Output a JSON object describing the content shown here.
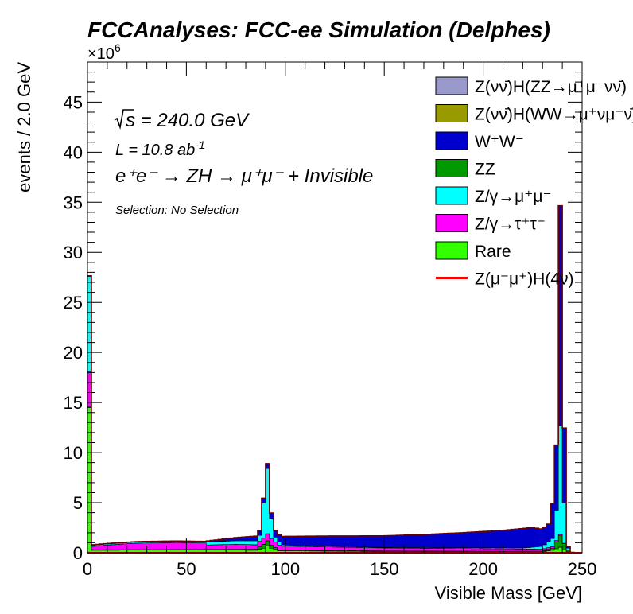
{
  "header": {
    "title": "FCCAnalyses: FCC-ee Simulation (Delphes)"
  },
  "annotations": {
    "sqrt_s": "s = 240.0 GeV",
    "lumi_prefix": "L = 10.8 ab",
    "lumi_exp": "-1",
    "process": "e⁺e⁻ → ZH → μ⁺μ⁻ + Invisible",
    "selection": "Selection: No Selection",
    "exponent_base": "×10",
    "exponent_power": "6"
  },
  "colors": {
    "ZZ_mumununu": "#9999cc",
    "WW_mumununu": "#999900",
    "WW": "#0000cc",
    "ZZ": "#009900",
    "Zmumu": "#00ffff",
    "Ztautau": "#ff00ff",
    "Rare": "#33ff00",
    "signal": "#ff0000"
  },
  "chart_data": {
    "type": "bar",
    "stacked": true,
    "xlabel": "Visible Mass [GeV]",
    "ylabel": "events / 2.0 GeV",
    "xlim": [
      0,
      250
    ],
    "ylim": [
      0,
      49
    ],
    "y_unit_multiplier": "1e6",
    "bin_width": 2.0,
    "xticks": [
      "0",
      "50",
      "100",
      "150",
      "200",
      "250"
    ],
    "yticks": [
      "0",
      "5",
      "10",
      "15",
      "20",
      "25",
      "30",
      "35",
      "40",
      "45"
    ],
    "legend_position": "top-right",
    "legend": [
      {
        "label": "Z(νν̄)H(ZZ→μ⁺μ⁻νν̄)",
        "color_key": "ZZ_mumununu",
        "style": "fill"
      },
      {
        "label": "Z(νν̄)H(WW→μ⁺νμ⁻ν̄)",
        "color_key": "WW_mumununu",
        "style": "fill"
      },
      {
        "label": "W⁺W⁻",
        "color_key": "WW",
        "style": "fill"
      },
      {
        "label": "ZZ",
        "color_key": "ZZ",
        "style": "fill"
      },
      {
        "label": "Z/γ→μ⁺μ⁻",
        "color_key": "Zmumu",
        "style": "fill"
      },
      {
        "label": "Z/γ→τ⁺τ⁻",
        "color_key": "Ztautau",
        "style": "fill"
      },
      {
        "label": "Rare",
        "color_key": "Rare",
        "style": "fill"
      },
      {
        "label": "Z(μ⁻μ⁺)H(4ν)",
        "color_key": "signal",
        "style": "line"
      }
    ],
    "stack_order": [
      "Rare",
      "ZZ",
      "Ztautau",
      "Zmumu",
      "WW",
      "WW_mumununu",
      "ZZ_mumununu"
    ],
    "anchors": {
      "Rare": [
        [
          1,
          14.5
        ],
        [
          3,
          0.25
        ],
        [
          61,
          0.28
        ],
        [
          85,
          0.25
        ],
        [
          89,
          0.45
        ],
        [
          91,
          0.7
        ],
        [
          93,
          0.45
        ],
        [
          97,
          0.2
        ],
        [
          150,
          0.12
        ],
        [
          230,
          0.1
        ],
        [
          235,
          0.25
        ],
        [
          237,
          0.4
        ],
        [
          239,
          0.55
        ],
        [
          241,
          0.3
        ],
        [
          243,
          0.1
        ],
        [
          245,
          0.02
        ],
        [
          249,
          0.0
        ]
      ],
      "ZZ": [
        [
          1,
          0.1
        ],
        [
          3,
          0.05
        ],
        [
          61,
          0.05
        ],
        [
          85,
          0.1
        ],
        [
          89,
          0.4
        ],
        [
          91,
          0.5
        ],
        [
          93,
          0.3
        ],
        [
          97,
          0.08
        ],
        [
          200,
          0.05
        ],
        [
          230,
          0.05
        ],
        [
          235,
          0.2
        ],
        [
          237,
          0.7
        ],
        [
          239,
          1.2
        ],
        [
          241,
          0.6
        ],
        [
          243,
          0.15
        ],
        [
          245,
          0.02
        ],
        [
          249,
          0.0
        ]
      ],
      "Ztautau": [
        [
          1,
          3.5
        ],
        [
          3,
          0.35
        ],
        [
          9,
          0.45
        ],
        [
          25,
          0.65
        ],
        [
          45,
          0.7
        ],
        [
          59,
          0.65
        ],
        [
          61,
          0.45
        ],
        [
          75,
          0.5
        ],
        [
          85,
          0.45
        ],
        [
          91,
          0.7
        ],
        [
          99,
          0.4
        ],
        [
          120,
          0.35
        ],
        [
          150,
          0.3
        ],
        [
          200,
          0.25
        ],
        [
          230,
          0.2
        ],
        [
          237,
          0.15
        ],
        [
          241,
          0.05
        ],
        [
          245,
          0.0
        ]
      ],
      "Zmumu": [
        [
          1,
          9.5
        ],
        [
          3,
          0.1
        ],
        [
          59,
          0.15
        ],
        [
          61,
          0.3
        ],
        [
          85,
          0.4
        ],
        [
          87,
          0.6
        ],
        [
          89,
          3.5
        ],
        [
          91,
          6.5
        ],
        [
          93,
          2.0
        ],
        [
          95,
          0.5
        ],
        [
          99,
          0.1
        ],
        [
          150,
          0.05
        ],
        [
          220,
          0.1
        ],
        [
          230,
          0.3
        ],
        [
          235,
          0.8
        ],
        [
          237,
          3.0
        ],
        [
          239,
          10.8
        ],
        [
          241,
          4.0
        ],
        [
          243,
          0.2
        ],
        [
          245,
          0.0
        ]
      ],
      "WW": [
        [
          1,
          0.05
        ],
        [
          3,
          0.05
        ],
        [
          59,
          0.0
        ],
        [
          61,
          0.1
        ],
        [
          75,
          0.3
        ],
        [
          85,
          0.45
        ],
        [
          91,
          0.5
        ],
        [
          99,
          0.85
        ],
        [
          120,
          1.0
        ],
        [
          150,
          1.15
        ],
        [
          170,
          1.3
        ],
        [
          190,
          1.5
        ],
        [
          210,
          1.75
        ],
        [
          220,
          1.95
        ],
        [
          225,
          1.95
        ],
        [
          229,
          1.75
        ],
        [
          233,
          1.75
        ],
        [
          235,
          3.5
        ],
        [
          237,
          6.5
        ],
        [
          239,
          22.0
        ],
        [
          241,
          7.5
        ],
        [
          243,
          0.15
        ],
        [
          245,
          0.0
        ]
      ],
      "WW_mumununu": [
        [
          1,
          0.0
        ],
        [
          249,
          0.0
        ]
      ],
      "ZZ_mumununu": [
        [
          1,
          0.0
        ],
        [
          249,
          0.0
        ]
      ],
      "signal": [
        [
          1,
          0.0
        ],
        [
          249,
          0.0
        ]
      ]
    }
  }
}
